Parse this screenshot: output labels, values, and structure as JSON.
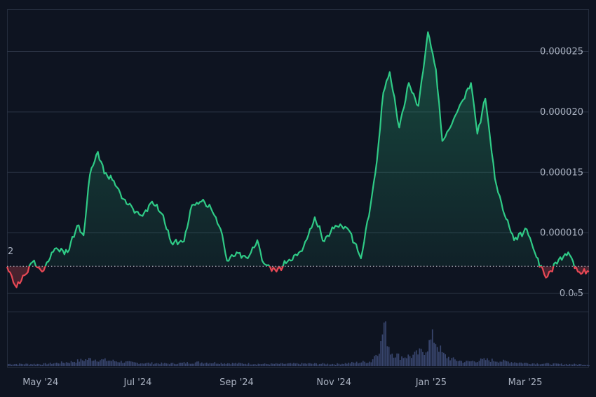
{
  "chart_data": {
    "type": "line",
    "title": "",
    "xlabel": "",
    "ylabel": "",
    "x_tick_labels": [
      "May '24",
      "Jul '24",
      "Sep '24",
      "Nov '24",
      "Jan '25",
      "Mar '25"
    ],
    "y_tick_labels": [
      "0.000025",
      "0.000020",
      "0.000015",
      "0.000010",
      "0.0₀5"
    ],
    "y_tick_values": [
      2.5e-05,
      2e-05,
      1.5e-05,
      1e-05,
      5e-06
    ],
    "ylim": [
      3.5e-06,
      2.85e-05
    ],
    "xlim": [
      "2024-04-10",
      "2025-04-10"
    ],
    "baseline_value": 7.25e-06,
    "baseline_marker_label": "2",
    "colors": {
      "above": "#2fca86",
      "below": "#e84855",
      "volume": "#38456d",
      "background": "#0e1421",
      "grid": "#2a3344"
    },
    "series": [
      {
        "values": [
          [
            "2024-04-10",
            7.2e-06
          ],
          [
            "2024-04-16",
            5.5e-06
          ],
          [
            "2024-04-22",
            6.6e-06
          ],
          [
            "2024-04-26",
            7.6e-06
          ],
          [
            "2024-05-02",
            6.8e-06
          ],
          [
            "2024-05-10",
            8.7e-06
          ],
          [
            "2024-05-18",
            8.4e-06
          ],
          [
            "2024-05-24",
            1.06e-05
          ],
          [
            "2024-05-28",
            9.8e-06
          ],
          [
            "2024-06-01",
            1.48e-05
          ],
          [
            "2024-06-06",
            1.67e-05
          ],
          [
            "2024-06-10",
            1.49e-05
          ],
          [
            "2024-06-16",
            1.43e-05
          ],
          [
            "2024-06-22",
            1.28e-05
          ],
          [
            "2024-06-28",
            1.2e-05
          ],
          [
            "2024-07-04",
            1.14e-05
          ],
          [
            "2024-07-10",
            1.26e-05
          ],
          [
            "2024-07-16",
            1.16e-05
          ],
          [
            "2024-07-22",
            9.2e-06
          ],
          [
            "2024-07-30",
            9.3e-06
          ],
          [
            "2024-08-04",
            1.23e-05
          ],
          [
            "2024-08-10",
            1.26e-05
          ],
          [
            "2024-08-16",
            1.2e-05
          ],
          [
            "2024-08-22",
            1.03e-05
          ],
          [
            "2024-08-26",
            7.7e-06
          ],
          [
            "2024-09-01",
            8.4e-06
          ],
          [
            "2024-09-08",
            7.9e-06
          ],
          [
            "2024-09-14",
            9.4e-06
          ],
          [
            "2024-09-18",
            7.5e-06
          ],
          [
            "2024-09-26",
            6.8e-06
          ],
          [
            "2024-10-04",
            7.8e-06
          ],
          [
            "2024-10-12",
            8.5e-06
          ],
          [
            "2024-10-20",
            1.13e-05
          ],
          [
            "2024-10-26",
            9.3e-06
          ],
          [
            "2024-11-02",
            1.06e-05
          ],
          [
            "2024-11-10",
            1.03e-05
          ],
          [
            "2024-11-18",
            7.9e-06
          ],
          [
            "2024-11-24",
            1.23e-05
          ],
          [
            "2024-11-28",
            1.6e-05
          ],
          [
            "2024-12-02",
            2.16e-05
          ],
          [
            "2024-12-06",
            2.33e-05
          ],
          [
            "2024-12-12",
            1.87e-05
          ],
          [
            "2024-12-18",
            2.24e-05
          ],
          [
            "2024-12-24",
            2.05e-05
          ],
          [
            "2024-12-30",
            2.66e-05
          ],
          [
            "2025-01-04",
            2.35e-05
          ],
          [
            "2025-01-08",
            1.76e-05
          ],
          [
            "2025-01-14",
            1.9e-05
          ],
          [
            "2025-01-20",
            2.08e-05
          ],
          [
            "2025-01-26",
            2.24e-05
          ],
          [
            "2025-01-30",
            1.82e-05
          ],
          [
            "2025-02-04",
            2.11e-05
          ],
          [
            "2025-02-10",
            1.45e-05
          ],
          [
            "2025-02-16",
            1.15e-05
          ],
          [
            "2025-02-22",
            9.4e-06
          ],
          [
            "2025-03-02",
            1.03e-05
          ],
          [
            "2025-03-08",
            8e-06
          ],
          [
            "2025-03-14",
            6.3e-06
          ],
          [
            "2025-03-22",
            7.8e-06
          ],
          [
            "2025-03-28",
            8.4e-06
          ],
          [
            "2025-04-03",
            6.8e-06
          ],
          [
            "2025-04-10",
            6.8e-06
          ]
        ]
      }
    ],
    "volume_series": [
      [
        "2024-04-10",
        0.05
      ],
      [
        "2024-05-02",
        0.05
      ],
      [
        "2024-05-20",
        0.1
      ],
      [
        "2024-06-01",
        0.17
      ],
      [
        "2024-06-10",
        0.14
      ],
      [
        "2024-06-28",
        0.08
      ],
      [
        "2024-07-20",
        0.06
      ],
      [
        "2024-08-08",
        0.09
      ],
      [
        "2024-08-26",
        0.07
      ],
      [
        "2024-09-18",
        0.05
      ],
      [
        "2024-10-14",
        0.06
      ],
      [
        "2024-11-02",
        0.05
      ],
      [
        "2024-11-24",
        0.11
      ],
      [
        "2024-11-30",
        0.48
      ],
      [
        "2024-12-02",
        1.0
      ],
      [
        "2024-12-06",
        0.34
      ],
      [
        "2024-12-12",
        0.22
      ],
      [
        "2024-12-20",
        0.24
      ],
      [
        "2024-12-28",
        0.38
      ],
      [
        "2025-01-02",
        0.68
      ],
      [
        "2025-01-08",
        0.27
      ],
      [
        "2025-01-14",
        0.16
      ],
      [
        "2025-01-22",
        0.1
      ],
      [
        "2025-02-04",
        0.15
      ],
      [
        "2025-02-16",
        0.11
      ],
      [
        "2025-03-02",
        0.07
      ],
      [
        "2025-03-20",
        0.05
      ],
      [
        "2025-04-10",
        0.04
      ]
    ]
  }
}
